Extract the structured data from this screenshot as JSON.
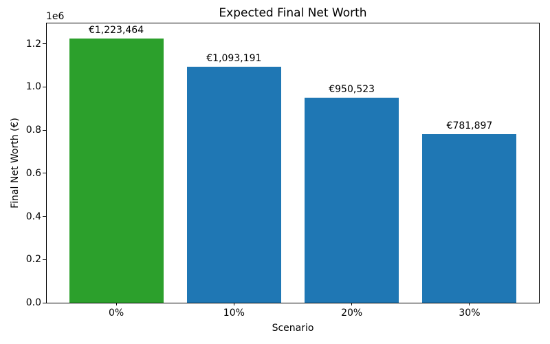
{
  "chart_data": {
    "type": "bar",
    "title": "Expected Final Net Worth",
    "xlabel": "Scenario",
    "ylabel": "Final Net Worth (€)",
    "y_offset_text": "1e6",
    "categories": [
      "0%",
      "10%",
      "20%",
      "30%"
    ],
    "values": [
      1223464,
      1093191,
      950523,
      781897
    ],
    "bar_labels": [
      "€1,223,464",
      "€1,093,191",
      "€950,523",
      "€781,897"
    ],
    "bar_colors": [
      "#2ca02c",
      "#1f77b4",
      "#1f77b4",
      "#1f77b4"
    ],
    "ylim": [
      0,
      1295000
    ],
    "yticks": [
      0,
      200000,
      400000,
      600000,
      800000,
      1000000,
      1200000
    ],
    "ytick_labels": [
      "0.0",
      "0.2",
      "0.4",
      "0.6",
      "0.8",
      "1.0",
      "1.2"
    ],
    "grid": false,
    "legend": null,
    "background_color": "#ffffff",
    "spine_color": "#000000"
  }
}
